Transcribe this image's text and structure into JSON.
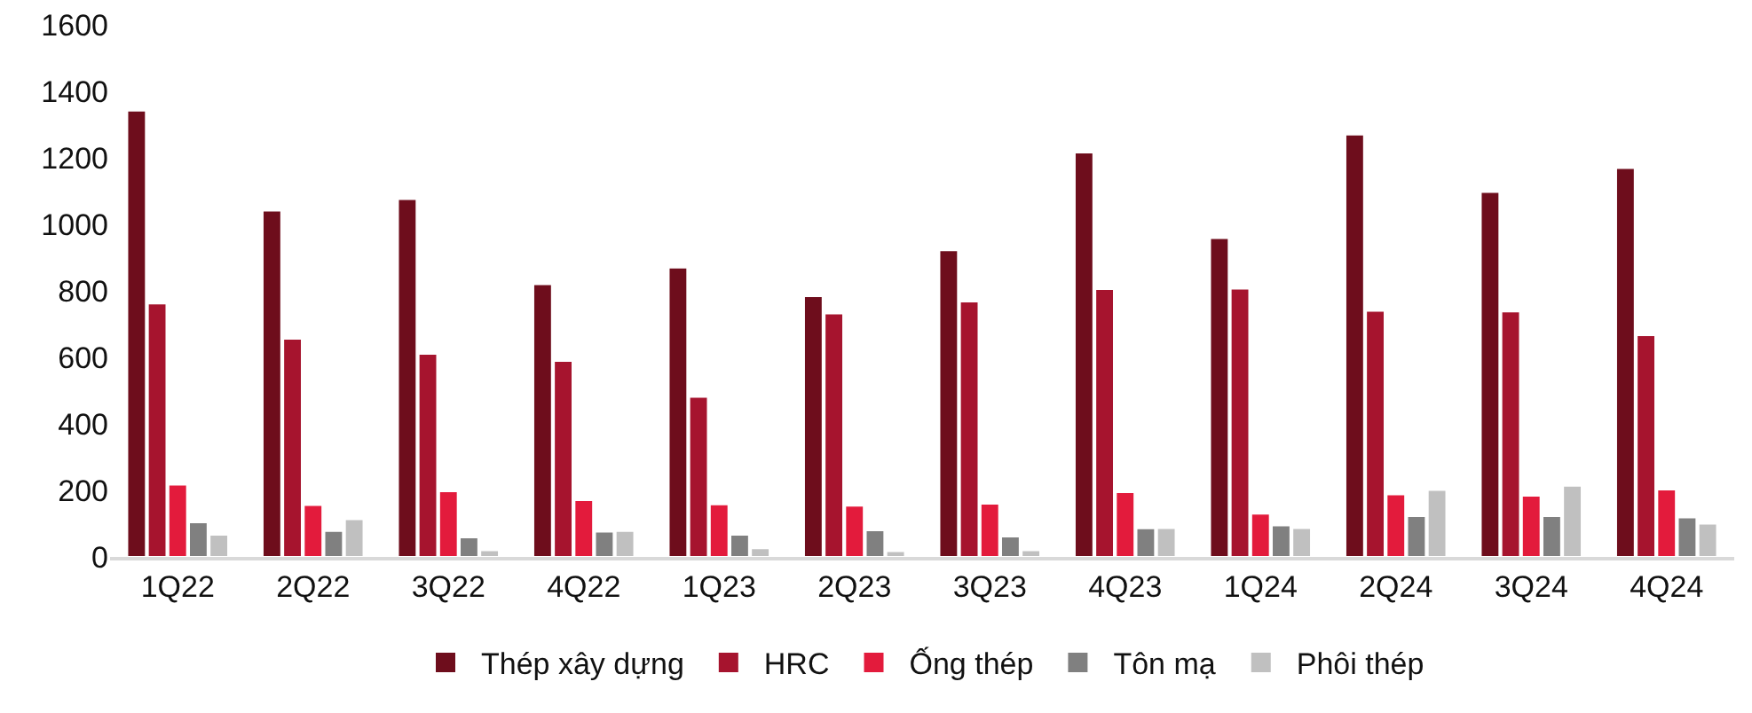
{
  "chart_data": {
    "type": "bar",
    "categories": [
      "1Q22",
      "2Q22",
      "3Q22",
      "4Q22",
      "1Q23",
      "2Q23",
      "3Q23",
      "4Q23",
      "1Q24",
      "2Q24",
      "3Q24",
      "4Q24"
    ],
    "series": [
      {
        "name": "Thép xây dựng",
        "color": "#6e0d1c",
        "values": [
          1342,
          1041,
          1076,
          820,
          870,
          784,
          922,
          1216,
          959,
          1270,
          1097,
          1169
        ]
      },
      {
        "name": "HRC",
        "color": "#a6142e",
        "values": [
          762,
          656,
          611,
          589,
          481,
          732,
          768,
          805,
          807,
          740,
          738,
          667
        ]
      },
      {
        "name": "Ống thép",
        "color": "#e31b3c",
        "values": [
          217,
          156,
          197,
          171,
          158,
          154,
          160,
          195,
          130,
          188,
          184,
          203
        ]
      },
      {
        "name": "Tôn mạ",
        "color": "#808080",
        "values": [
          104,
          78,
          59,
          76,
          67,
          80,
          61,
          86,
          95,
          123,
          123,
          119
        ]
      },
      {
        "name": "Phôi thép",
        "color": "#c0c0c0",
        "values": [
          67,
          113,
          20,
          78,
          26,
          17,
          20,
          87,
          87,
          201,
          214,
          100
        ]
      }
    ],
    "ylim": [
      0,
      1600
    ],
    "yticks": [
      0,
      200,
      400,
      600,
      800,
      1000,
      1200,
      1400,
      1600
    ],
    "grid": false,
    "legend": "bottom"
  }
}
